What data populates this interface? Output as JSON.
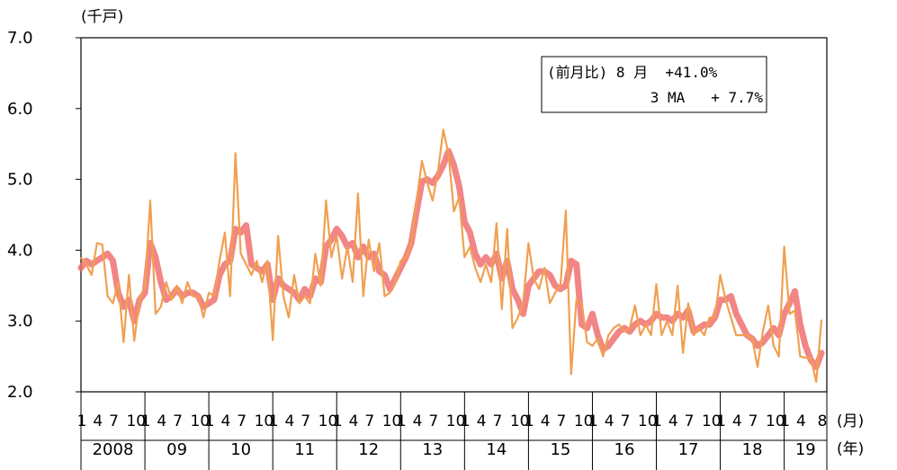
{
  "chart_data": {
    "type": "line",
    "ylabel": "(千戸)",
    "ylim": [
      2.0,
      7.0
    ],
    "yticks": [
      "7.0",
      "6.0",
      "5.0",
      "4.0",
      "3.0",
      "2.0"
    ],
    "month_ticks": [
      "1",
      "4",
      "7",
      "10"
    ],
    "last_year_month_ticks": [
      "1",
      "4",
      "8"
    ],
    "x_unit_month": "(月)",
    "x_unit_year": "(年)",
    "years": [
      "2008",
      "09",
      "10",
      "11",
      "12",
      "13",
      "14",
      "15",
      "16",
      "17",
      "18",
      "19"
    ],
    "annotation": {
      "line1": "(前月比) 8 月  +41.0%",
      "line2": "3 MA   + 7.7%"
    },
    "colors": {
      "monthly": "#f0a050",
      "ma3": "#f07070"
    },
    "series": [
      {
        "key": "monthly",
        "values": [
          3.9,
          3.8,
          3.65,
          4.1,
          4.08,
          3.35,
          3.25,
          3.55,
          2.7,
          3.65,
          2.72,
          3.3,
          3.5,
          4.7,
          3.1,
          3.2,
          3.55,
          3.3,
          3.5,
          3.25,
          3.55,
          3.35,
          3.35,
          3.05,
          3.4,
          3.35,
          3.85,
          4.25,
          3.35,
          5.37,
          3.95,
          3.8,
          3.65,
          3.85,
          3.55,
          3.85,
          2.73,
          4.2,
          3.35,
          3.05,
          3.65,
          3.25,
          3.35,
          3.25,
          3.95,
          3.5,
          4.7,
          3.9,
          4.2,
          3.6,
          4.05,
          3.55,
          4.8,
          3.35,
          4.15,
          3.7,
          4.1,
          3.35,
          3.4,
          3.55,
          3.85,
          3.9,
          4.1,
          4.7,
          5.26,
          4.95,
          4.7,
          5.1,
          5.7,
          5.35,
          4.55,
          4.75,
          3.9,
          4.05,
          3.75,
          3.55,
          3.8,
          3.55,
          4.38,
          3.17,
          4.3,
          2.9,
          3.05,
          3.25,
          4.1,
          3.6,
          3.45,
          3.75,
          3.25,
          3.4,
          3.5,
          4.56,
          2.25,
          3.3,
          3.25,
          2.7,
          2.65,
          2.75,
          2.5,
          2.8,
          2.9,
          2.95,
          2.85,
          2.9,
          3.22,
          2.8,
          2.95,
          2.8,
          3.52,
          2.8,
          3.0,
          2.8,
          3.5,
          2.55,
          3.25,
          2.8,
          2.9,
          2.8,
          3.05,
          3.05,
          3.65,
          3.3,
          3.05,
          2.8,
          2.8,
          2.8,
          2.75,
          2.35,
          2.85,
          3.22,
          2.65,
          2.5,
          4.05,
          3.1,
          3.15,
          2.5,
          2.48,
          2.48,
          2.14,
          3.02
        ]
      },
      {
        "key": "ma3",
        "values": [
          3.75,
          3.85,
          3.8,
          3.85,
          3.9,
          3.95,
          3.85,
          3.4,
          3.2,
          3.3,
          3.0,
          3.3,
          3.4,
          4.1,
          3.9,
          3.55,
          3.3,
          3.35,
          3.45,
          3.35,
          3.4,
          3.4,
          3.35,
          3.2,
          3.25,
          3.3,
          3.65,
          3.8,
          3.85,
          4.3,
          4.25,
          4.35,
          3.8,
          3.75,
          3.7,
          3.8,
          3.3,
          3.6,
          3.5,
          3.45,
          3.4,
          3.3,
          3.45,
          3.35,
          3.6,
          3.55,
          4.05,
          4.15,
          4.3,
          4.2,
          4.05,
          4.1,
          3.9,
          4.05,
          3.9,
          3.95,
          3.7,
          3.65,
          3.45,
          3.6,
          3.75,
          3.9,
          4.1,
          4.55,
          4.97,
          5.0,
          4.95,
          5.05,
          5.2,
          5.4,
          5.2,
          4.9,
          4.4,
          4.25,
          3.95,
          3.8,
          3.9,
          3.8,
          3.95,
          3.6,
          3.85,
          3.45,
          3.3,
          3.1,
          3.5,
          3.6,
          3.7,
          3.7,
          3.65,
          3.5,
          3.45,
          3.5,
          3.85,
          3.8,
          2.95,
          2.9,
          3.1,
          2.8,
          2.6,
          2.65,
          2.75,
          2.85,
          2.9,
          2.85,
          2.95,
          3.0,
          2.95,
          3.0,
          3.1,
          3.05,
          3.05,
          3.0,
          3.1,
          3.05,
          3.15,
          2.85,
          2.9,
          2.95,
          2.95,
          3.05,
          3.3,
          3.3,
          3.35,
          3.1,
          2.95,
          2.8,
          2.75,
          2.65,
          2.7,
          2.8,
          2.9,
          2.8,
          3.1,
          3.25,
          3.42,
          2.95,
          2.65,
          2.45,
          2.35,
          2.55
        ]
      }
    ]
  }
}
